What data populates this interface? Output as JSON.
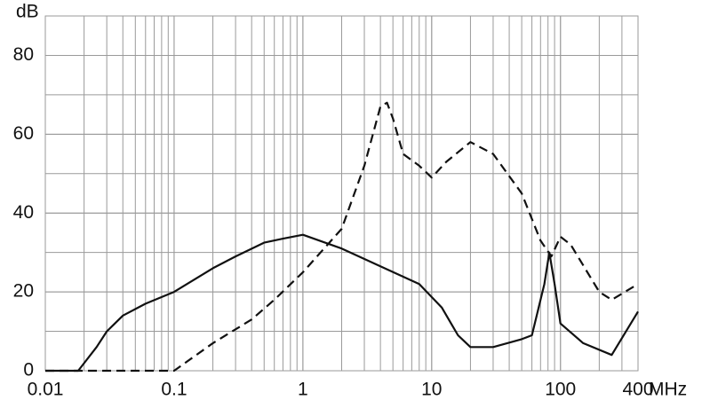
{
  "chart_data": {
    "type": "line",
    "ylabel": "dB",
    "xlabel": "MHz",
    "xscale": "log",
    "grid": true,
    "xlim": [
      0.01,
      400
    ],
    "xticks": [
      0.01,
      0.1,
      1,
      10,
      100,
      400
    ],
    "ylim": [
      0,
      90
    ],
    "yticks": [
      0,
      20,
      40,
      60,
      80
    ],
    "series": [
      {
        "color": "#111111",
        "style": "solid",
        "x": [
          0.01,
          0.018,
          0.025,
          0.03,
          0.04,
          0.06,
          0.1,
          0.2,
          0.3,
          0.5,
          0.7,
          1,
          2,
          4,
          8,
          12,
          16,
          20,
          30,
          50,
          60,
          75,
          82,
          90,
          100,
          150,
          250,
          400
        ],
        "values": [
          0,
          0,
          6,
          10,
          14,
          17,
          20,
          26,
          29,
          32.5,
          33.5,
          34.5,
          31,
          26.5,
          22,
          16,
          9,
          6,
          6,
          8,
          9,
          22,
          30,
          22,
          12,
          7,
          4,
          15
        ]
      },
      {
        "color": "#111111",
        "style": "dashed",
        "x": [
          0.01,
          0.1,
          0.2,
          0.4,
          0.6,
          1,
          2,
          3,
          4,
          4.5,
          5,
          6,
          8,
          10,
          13,
          20,
          30,
          50,
          70,
          85,
          100,
          120,
          200,
          250,
          400
        ],
        "values": [
          0,
          0,
          7,
          13,
          18,
          25,
          36,
          52,
          67,
          68,
          64,
          55,
          52,
          49,
          53,
          58,
          55,
          45,
          33,
          29,
          34,
          32,
          20,
          18,
          22
        ]
      }
    ]
  }
}
